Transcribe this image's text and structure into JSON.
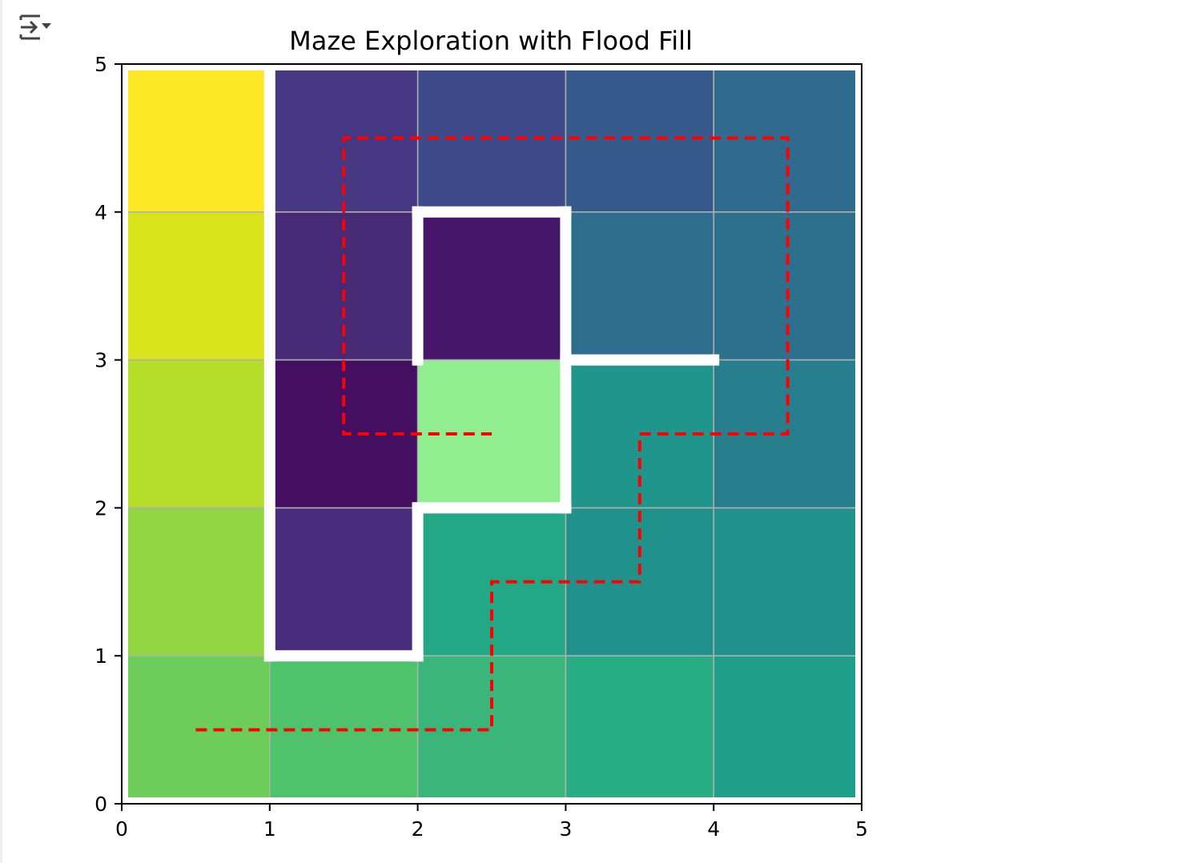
{
  "toolbar": {
    "icon": "output-collapse-icon"
  },
  "chart_data": {
    "type": "heatmap",
    "title": "Maze Exploration with Flood Fill",
    "xlabel": "",
    "ylabel": "",
    "xlim": [
      0,
      5
    ],
    "ylim": [
      0,
      5
    ],
    "xticks": [
      "0",
      "1",
      "2",
      "3",
      "4",
      "5"
    ],
    "yticks": [
      "0",
      "1",
      "2",
      "3",
      "4",
      "5"
    ],
    "grid": true,
    "colormap": "viridis",
    "cells_by_row_bottom_to_top": [
      [
        "#6ccd5a",
        "#4ec36b",
        "#3bb67a",
        "#27ad81",
        "#1f9e89"
      ],
      [
        "#90d743",
        "#472d7b",
        "#22a884",
        "#21918c",
        "#21918c"
      ],
      [
        "#b5de2b",
        "#440f61",
        "#90ee90",
        "#1f958b",
        "#277f8e"
      ],
      [
        "#dae319",
        "#472a75",
        "#46166a",
        "#2e6d8e",
        "#2d708e"
      ],
      [
        "#fde725",
        "#453781",
        "#3e4a89",
        "#375a8c",
        "#306a8e"
      ]
    ],
    "highlight_cell": {
      "x": 2,
      "y": 2,
      "color": "#90ee90"
    },
    "walls": [
      {
        "x": [
          1,
          1
        ],
        "y": [
          1,
          5
        ]
      },
      {
        "x": [
          1,
          2
        ],
        "y": [
          1,
          1
        ]
      },
      {
        "x": [
          2,
          2
        ],
        "y": [
          1,
          2
        ]
      },
      {
        "x": [
          2,
          3
        ],
        "y": [
          2,
          2
        ]
      },
      {
        "x": [
          3,
          3
        ],
        "y": [
          2,
          4
        ]
      },
      {
        "x": [
          2,
          3
        ],
        "y": [
          4,
          4
        ]
      },
      {
        "x": [
          2,
          2
        ],
        "y": [
          3,
          4
        ]
      },
      {
        "x": [
          3,
          4
        ],
        "y": [
          3,
          3
        ]
      }
    ],
    "wall_color": "#ffffff",
    "path": {
      "color": "#ff0000",
      "style": "dashed",
      "x": [
        0.5,
        2.5,
        2.5,
        3.5,
        3.5,
        4.5,
        4.5,
        1.5,
        1.5,
        2.5
      ],
      "y": [
        0.5,
        0.5,
        1.5,
        1.5,
        2.5,
        2.5,
        4.5,
        4.5,
        2.5,
        2.5
      ]
    }
  }
}
